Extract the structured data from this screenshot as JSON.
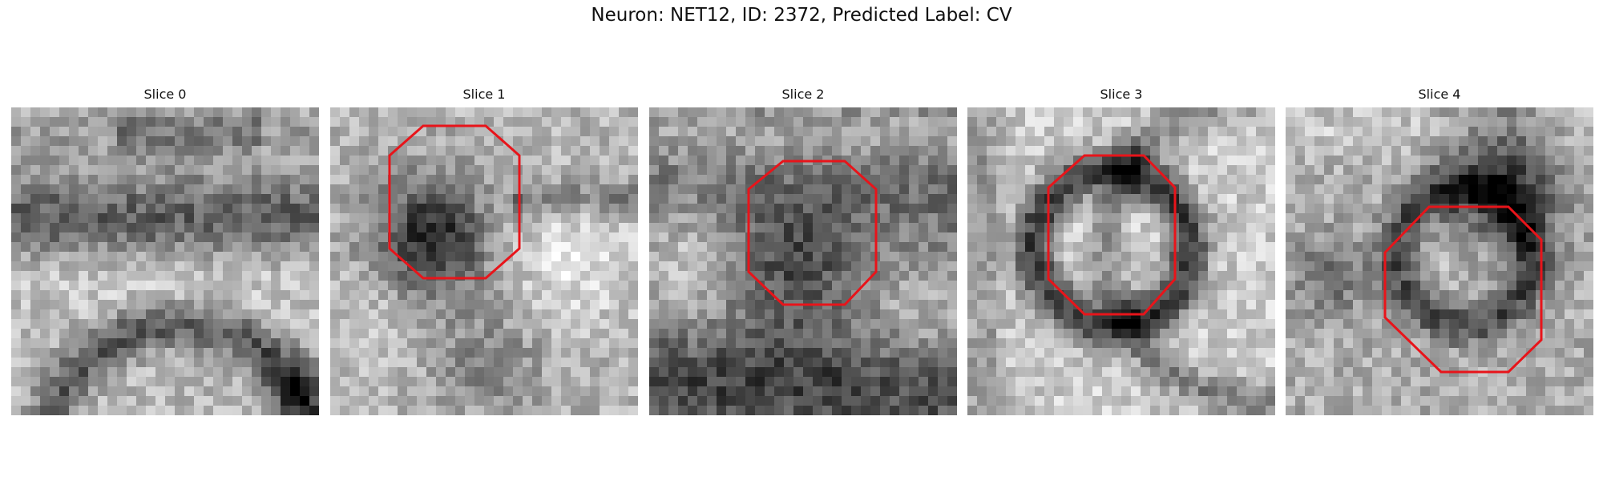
{
  "figure": {
    "title": "Neuron: NET12, ID: 2372, Predicted Label: CV"
  },
  "panels": [
    {
      "label": "Slice 0",
      "has_outline": false
    },
    {
      "label": "Slice 1",
      "has_outline": true
    },
    {
      "label": "Slice 2",
      "has_outline": true
    },
    {
      "label": "Slice 3",
      "has_outline": true
    },
    {
      "label": "Slice 4",
      "has_outline": true
    }
  ],
  "colors": {
    "outline": "#e8141a",
    "colormap": "grayscale"
  }
}
